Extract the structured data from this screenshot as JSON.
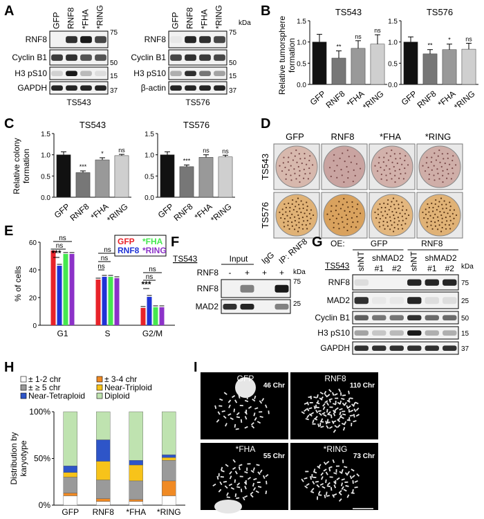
{
  "panels": [
    "A",
    "B",
    "C",
    "D",
    "E",
    "F",
    "G",
    "H",
    "I"
  ],
  "colors": {
    "gfp": "#e8232a",
    "rnf8": "#1f33d6",
    "fha": "#45e84f",
    "ring": "#8c32c8",
    "black": "#111111",
    "dark": "#777777",
    "mid": "#999999",
    "light": "#cfcfcf"
  },
  "A": {
    "lanes": [
      "GFP",
      "RNF8",
      "*FHA",
      "*RING"
    ],
    "kda": "kDa",
    "left": {
      "title": "TS543",
      "rows": [
        "RNF8",
        "Cyclin B1",
        "H3 pS10",
        "GAPDH"
      ],
      "markers": [
        "75",
        "50",
        "15",
        "37"
      ]
    },
    "right": {
      "title": "TS576",
      "rows": [
        "RNF8",
        "Cyclin B1",
        "H3 pS10",
        "β-actin"
      ],
      "markers": [
        "75",
        "50",
        "15",
        "37"
      ]
    }
  },
  "B": {
    "ylabel": "Relative tumorsphere formation",
    "charts": [
      {
        "title": "TS543",
        "categories": [
          "GFP",
          "RNF8",
          "*FHA",
          "*RING"
        ],
        "values": [
          1.0,
          0.62,
          0.85,
          0.95
        ],
        "errors": [
          0.18,
          0.17,
          0.18,
          0.22
        ],
        "sig": [
          "",
          "**",
          "ns",
          "ns"
        ]
      },
      {
        "title": "TS576",
        "categories": [
          "GFP",
          "RNF8",
          "*FHA",
          "*RING"
        ],
        "values": [
          1.0,
          0.72,
          0.82,
          0.83
        ],
        "errors": [
          0.12,
          0.1,
          0.13,
          0.14
        ],
        "sig": [
          "",
          "**",
          "*",
          "ns"
        ]
      }
    ],
    "yticks": [
      "0.0",
      "0.5",
      "1.0",
      "1.5"
    ]
  },
  "C": {
    "ylabel": "Relative colony formation",
    "charts": [
      {
        "title": "TS543",
        "categories": [
          "GFP",
          "RNF8",
          "*FHA",
          "*RING"
        ],
        "values": [
          1.0,
          0.58,
          0.88,
          0.98
        ],
        "errors": [
          0.07,
          0.04,
          0.05,
          0.03
        ],
        "sig": [
          "",
          "***",
          "*",
          "ns"
        ]
      },
      {
        "title": "TS576",
        "categories": [
          "GFP",
          "RNF8",
          "*FHA",
          "*RING"
        ],
        "values": [
          1.0,
          0.72,
          0.94,
          0.95
        ],
        "errors": [
          0.07,
          0.04,
          0.06,
          0.04
        ],
        "sig": [
          "",
          "***",
          "ns",
          "ns"
        ]
      }
    ],
    "yticks": [
      "0.0",
      "0.5",
      "1.0",
      "1.5"
    ]
  },
  "D": {
    "columns": [
      "GFP",
      "RNF8",
      "*FHA",
      "*RING"
    ],
    "rows": [
      "TS543",
      "TS576"
    ]
  },
  "E": {
    "ylabel": "% of cells",
    "categories": [
      "G1",
      "S",
      "G2/M"
    ],
    "legend": [
      "GFP",
      "*FHA",
      "RNF8",
      "*RING"
    ],
    "series": [
      {
        "name": "GFP",
        "values": [
          54,
          33,
          12.5
        ]
      },
      {
        "name": "RNF8",
        "values": [
          43,
          35,
          20.5
        ]
      },
      {
        "name": "*FHA",
        "values": [
          51.5,
          35,
          13
        ]
      },
      {
        "name": "*RING",
        "values": [
          51.5,
          34,
          13
        ]
      }
    ],
    "yticks": [
      "0",
      "20",
      "40",
      "60"
    ],
    "sig": [
      "***",
      "ns",
      "ns",
      "ns",
      "ns",
      "ns",
      "***",
      "ns",
      "ns"
    ]
  },
  "F": {
    "cell": "TS543",
    "groups": [
      "Input",
      "IgG",
      "IP: RNF8"
    ],
    "rnf8_label": "RNF8",
    "signs": [
      "-",
      "+",
      "+",
      "+"
    ],
    "rows": [
      "RNF8",
      "MAD2"
    ],
    "kda": "kDa",
    "markers": [
      "75",
      "25"
    ]
  },
  "G": {
    "oe": "OE:",
    "groups": [
      "GFP",
      "RNF8"
    ],
    "cell": "TS543",
    "lanes": [
      "shNT",
      "shMAD2",
      "#1",
      "#2",
      "shNT",
      "shMAD2",
      "#1",
      "#2"
    ],
    "rows": [
      "RNF8",
      "MAD2",
      "Cyclin B1",
      "H3 pS10",
      "GAPDH"
    ],
    "kda": "kDa",
    "markers": [
      "75",
      "25",
      "50",
      "15",
      "37"
    ]
  },
  "H": {
    "ylabel": "Distribution by karyotype",
    "legend": [
      "± 1-2 chr",
      "± 3-4 chr",
      "± ≥ 5 chr",
      "Near-Triploid",
      "Near-Tetraploid",
      "Diploid"
    ],
    "legend_colors": [
      "#ffffff",
      "#f08a24",
      "#9a9a9a",
      "#f7c31a",
      "#2e55c8",
      "#bfe3b0"
    ],
    "categories": [
      "GFP",
      "RNF8",
      "*FHA",
      "*RING"
    ],
    "yticks": [
      "0%",
      "50%",
      "100%"
    ],
    "stacks": [
      [
        10,
        3,
        17,
        5,
        7,
        58
      ],
      [
        4,
        3,
        20,
        20,
        23,
        30
      ],
      [
        4,
        2,
        20,
        17,
        5,
        52
      ],
      [
        10,
        16,
        22,
        3,
        3,
        46
      ]
    ]
  },
  "I": {
    "cells": [
      {
        "label": "GFP",
        "count": "46 Chr"
      },
      {
        "label": "RNF8",
        "count": "110 Chr"
      },
      {
        "label": "*FHA",
        "count": "55 Chr"
      },
      {
        "label": "*RING",
        "count": "73 Chr"
      }
    ]
  }
}
